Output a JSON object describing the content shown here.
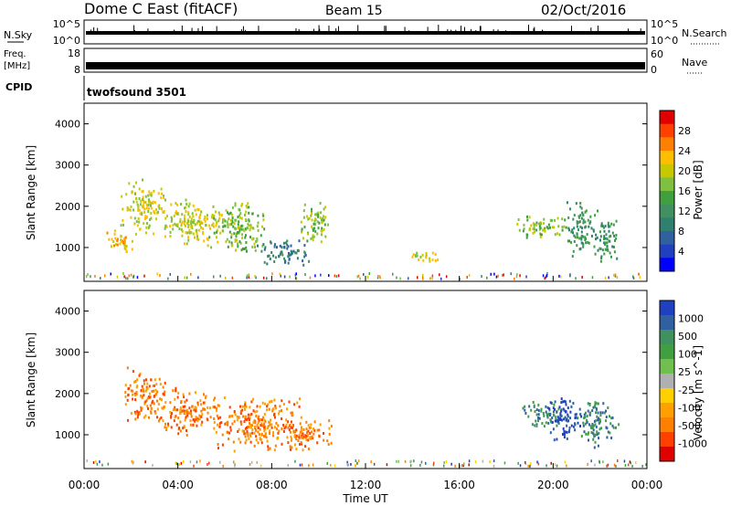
{
  "header": {
    "title": "Dome C East (fitACF)",
    "beam": "Beam 15",
    "date": "02/Oct/2016"
  },
  "top_panels": {
    "nsky_label": "N.Sky",
    "nsky_ticks": [
      "10^5",
      "10^0"
    ],
    "nsearch_label": "N.Search",
    "nsearch_ticks": [
      "10^5",
      "10^0"
    ],
    "freq_label_1": "Freq.",
    "freq_label_2": "[MHz]",
    "freq_ticks": [
      "18",
      "8"
    ],
    "nave_label": "Nave",
    "nave_ticks": [
      "60",
      "0"
    ],
    "cpid_label": "CPID",
    "cpid_value": "twofsound 3501"
  },
  "chart_data": [
    {
      "type": "heatmap",
      "name": "power",
      "ylabel": "Slant Range [km]",
      "ylim": [
        180,
        4500
      ],
      "yticks": [
        "4000",
        "3000",
        "2000",
        "1000"
      ],
      "colorbar_label": "Power [dB]",
      "colorbar_ticks": [
        "28",
        "24",
        "20",
        "16",
        "12",
        "8",
        "4"
      ],
      "colorbar_colors": [
        "#e00000",
        "#ff4000",
        "#ff8000",
        "#ffbf00",
        "#c8c800",
        "#80c040",
        "#40a040",
        "#409060",
        "#308070",
        "#3060a0",
        "#2040c0",
        "#0000ff"
      ],
      "blobs": [
        {
          "t": 1.5,
          "r": 1200,
          "dt": 0.6,
          "dr": 350,
          "c": 3
        },
        {
          "t": 2.5,
          "r": 2000,
          "dt": 1.0,
          "dr": 700,
          "c": 4
        },
        {
          "t": 4.5,
          "r": 1600,
          "dt": 1.5,
          "dr": 600,
          "c": 4
        },
        {
          "t": 6.5,
          "r": 1500,
          "dt": 1.3,
          "dr": 700,
          "c": 5
        },
        {
          "t": 8.5,
          "r": 900,
          "dt": 1.2,
          "dr": 350,
          "c": 8
        },
        {
          "t": 9.8,
          "r": 1700,
          "dt": 0.7,
          "dr": 600,
          "c": 5
        },
        {
          "t": 14.5,
          "r": 800,
          "dt": 0.8,
          "dr": 150,
          "c": 4
        },
        {
          "t": 19.5,
          "r": 1500,
          "dt": 1.3,
          "dr": 300,
          "c": 5
        },
        {
          "t": 21.2,
          "r": 1500,
          "dt": 0.7,
          "dr": 700,
          "c": 7
        },
        {
          "t": 22.2,
          "r": 1200,
          "dt": 0.6,
          "dr": 600,
          "c": 7
        }
      ]
    },
    {
      "type": "heatmap",
      "name": "velocity",
      "ylabel": "Slant Range [km]",
      "xlabel": "Time UT",
      "ylim": [
        180,
        4500
      ],
      "yticks": [
        "4000",
        "3000",
        "2000",
        "1000"
      ],
      "xlim": [
        0,
        24
      ],
      "xticks": [
        "00:00",
        "04:00",
        "08:00",
        "12:00",
        "16:00",
        "20:00",
        "00:00"
      ],
      "colorbar_label": "Velocity [m s^-1]",
      "colorbar_ticks": [
        "1000",
        "500",
        "100",
        "25",
        "-25",
        "-100",
        "-500",
        "-1000"
      ],
      "colorbar_colors": [
        "#2040c0",
        "#3060a0",
        "#409060",
        "#40a040",
        "#70c050",
        "#b0b0b0",
        "#ffd000",
        "#ffa000",
        "#ff8000",
        "#ff4000",
        "#e00000"
      ],
      "blobs": [
        {
          "t": 2.5,
          "r": 2000,
          "dt": 1.0,
          "dr": 700,
          "c": 8
        },
        {
          "t": 4.5,
          "r": 1600,
          "dt": 1.5,
          "dr": 600,
          "c": 8
        },
        {
          "t": 7.5,
          "r": 1300,
          "dt": 2.0,
          "dr": 700,
          "c": 8
        },
        {
          "t": 9.5,
          "r": 1000,
          "dt": 1.3,
          "dr": 400,
          "c": 8
        },
        {
          "t": 19.5,
          "r": 1500,
          "dt": 0.9,
          "dr": 400,
          "c": 2
        },
        {
          "t": 20.5,
          "r": 1400,
          "dt": 0.8,
          "dr": 600,
          "c": 0
        },
        {
          "t": 21.8,
          "r": 1300,
          "dt": 1.0,
          "dr": 600,
          "c": 2
        }
      ]
    }
  ]
}
